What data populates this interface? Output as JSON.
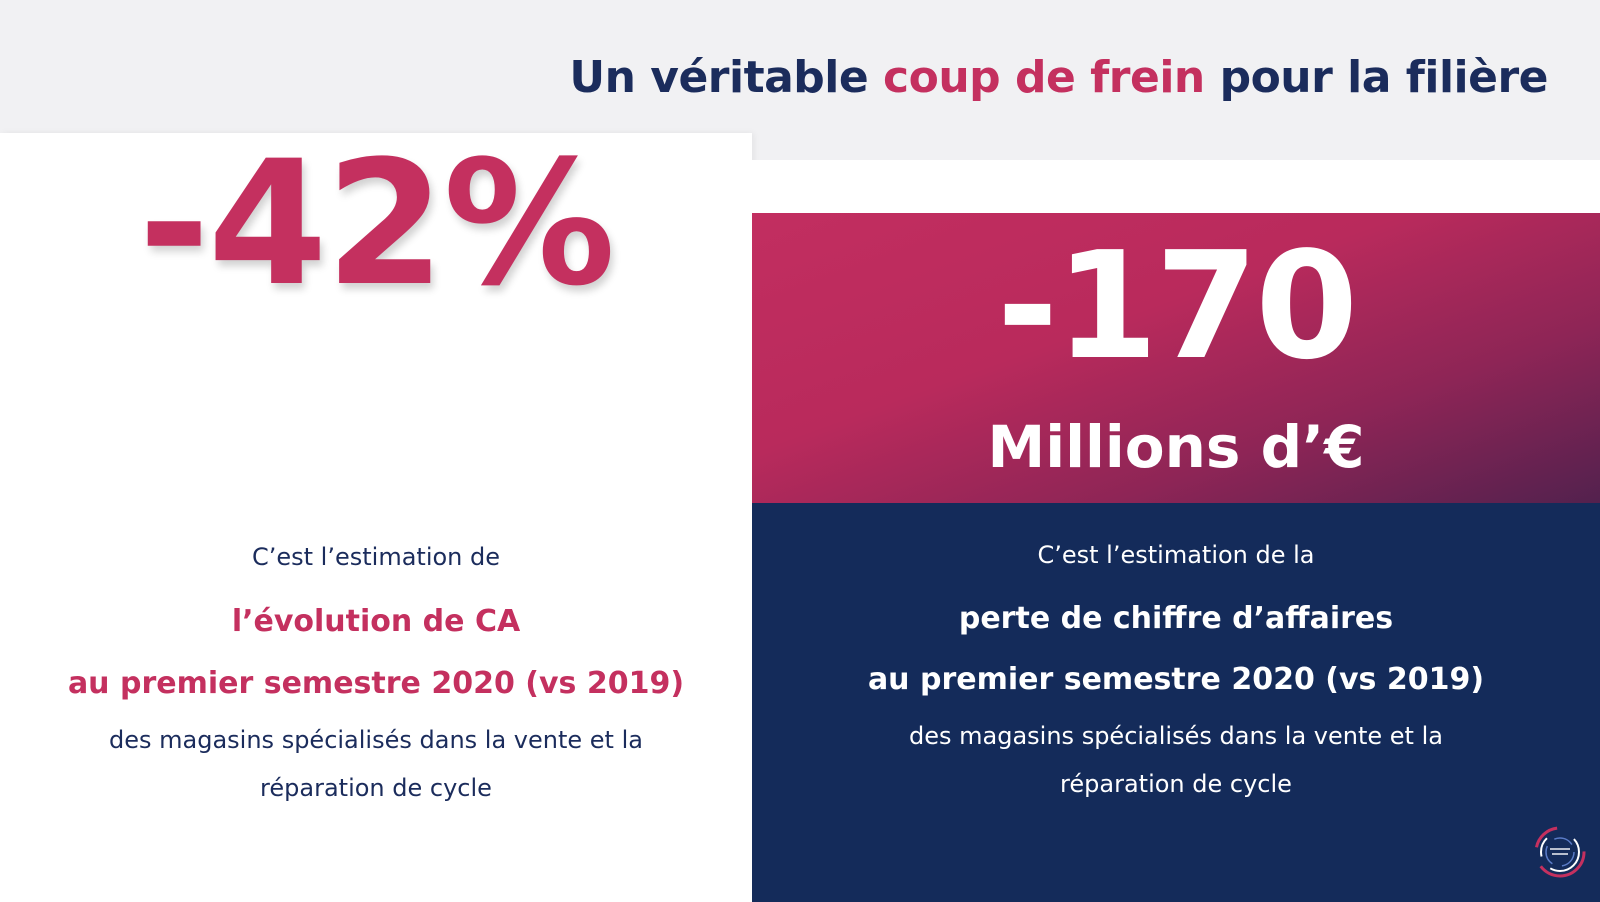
{
  "title": {
    "part1": "Un véritable ",
    "accent": "coup de frein",
    "part2": " pour la filière"
  },
  "left": {
    "big_value": "-42%",
    "line1": "C’est l’estimation de",
    "line2": "l’évolution de CA",
    "line3": "au premier semestre 2020 (vs 2019)",
    "line4": "des magasins spécialisés dans la vente et la",
    "line5": "réparation de cycle"
  },
  "right": {
    "big_value": "-170",
    "unit": "Millions d’€",
    "line1": "C’est l’estimation de la",
    "line2": "perte de chiffre d’affaires",
    "line3": "au premier semestre 2020 (vs 2019)",
    "line4": "des magasins spécialisés dans la vente et la",
    "line5": "réparation de cycle"
  },
  "colors": {
    "navy": "#1b2c5c",
    "accent": "#c4305f",
    "panel_navy": "#142b5a"
  },
  "logo": {
    "icon": "circular-logo-icon"
  }
}
